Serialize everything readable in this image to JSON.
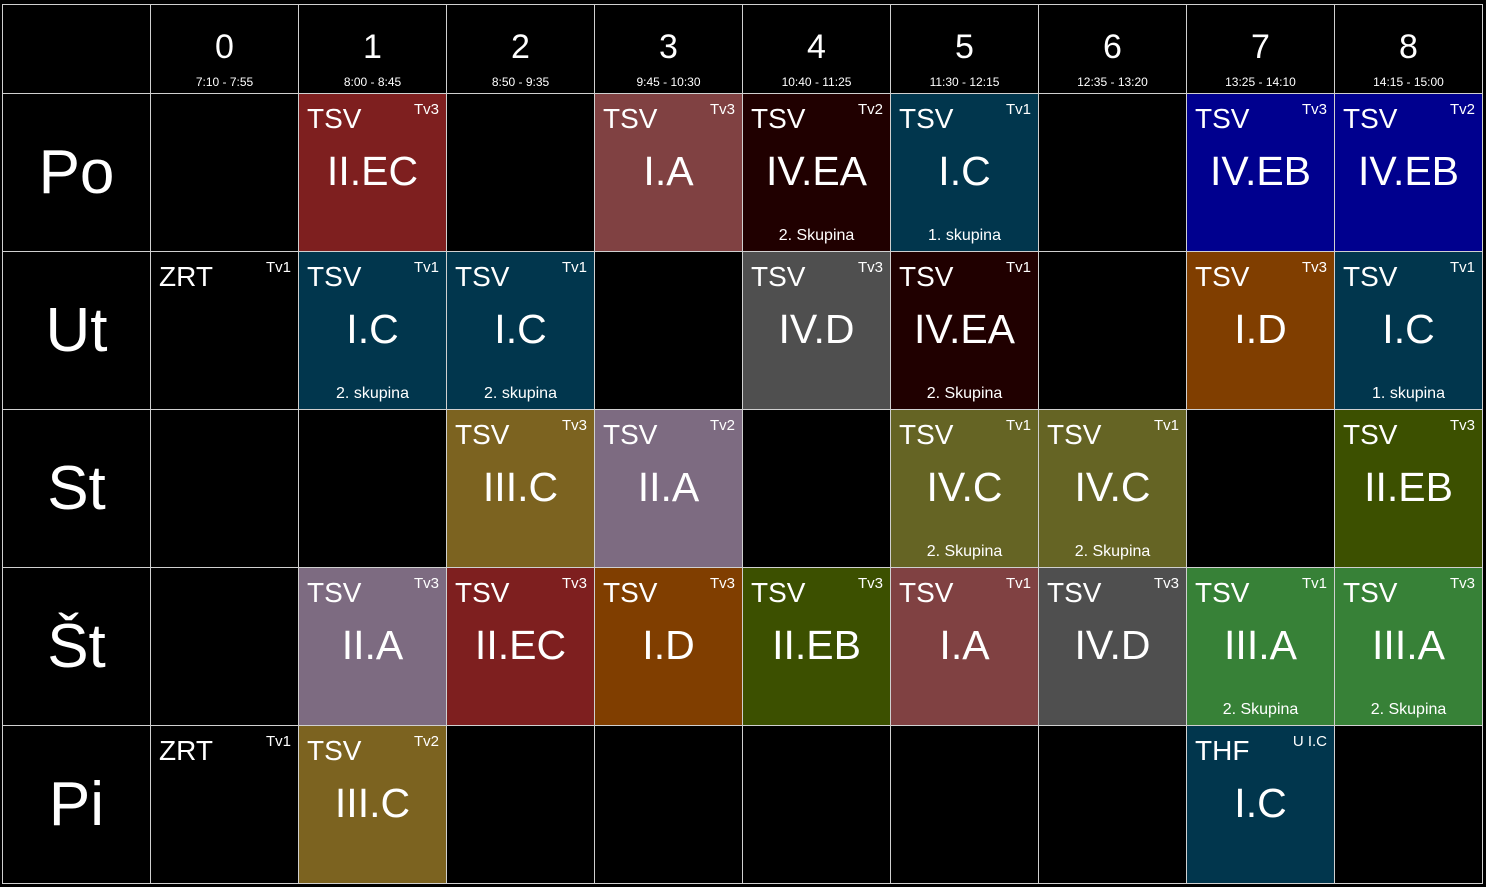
{
  "periods": [
    {
      "num": "0",
      "time": "7:10 - 7:55"
    },
    {
      "num": "1",
      "time": "8:00 - 8:45"
    },
    {
      "num": "2",
      "time": "8:50 - 9:35"
    },
    {
      "num": "3",
      "time": "9:45 - 10:30"
    },
    {
      "num": "4",
      "time": "10:40 - 11:25"
    },
    {
      "num": "5",
      "time": "11:30 - 12:15"
    },
    {
      "num": "6",
      "time": "12:35 - 13:20"
    },
    {
      "num": "7",
      "time": "13:25 - 14:10"
    },
    {
      "num": "8",
      "time": "14:15 - 15:00"
    }
  ],
  "days": [
    {
      "label": "Po",
      "lessons": [
        null,
        {
          "subject": "TSV",
          "room": "Tv3",
          "class": "II.EC",
          "group": "",
          "color": "#7e1f1f"
        },
        null,
        {
          "subject": "TSV",
          "room": "Tv3",
          "class": "I.A",
          "group": "",
          "color": "#804142"
        },
        {
          "subject": "TSV",
          "room": "Tv2",
          "class": "IV.EA",
          "group": "2. Skupina",
          "color": "#200000"
        },
        {
          "subject": "TSV",
          "room": "Tv1",
          "class": "I.C",
          "group": "1. skupina",
          "color": "#01364d"
        },
        null,
        {
          "subject": "TSV",
          "room": "Tv3",
          "class": "IV.EB",
          "group": "",
          "color": "#00008e"
        },
        {
          "subject": "TSV",
          "room": "Tv2",
          "class": "IV.EB",
          "group": "",
          "color": "#00008e"
        }
      ]
    },
    {
      "label": "Ut",
      "lessons": [
        {
          "subject": "ZRT",
          "room": "Tv1",
          "class": "",
          "group": "",
          "color": "#000000"
        },
        {
          "subject": "TSV",
          "room": "Tv1",
          "class": "I.C",
          "group": "2. skupina",
          "color": "#01364d"
        },
        {
          "subject": "TSV",
          "room": "Tv1",
          "class": "I.C",
          "group": "2. skupina",
          "color": "#01364d"
        },
        null,
        {
          "subject": "TSV",
          "room": "Tv3",
          "class": "IV.D",
          "group": "",
          "color": "#4f4f4f"
        },
        {
          "subject": "TSV",
          "room": "Tv1",
          "class": "IV.EA",
          "group": "2. Skupina",
          "color": "#200000"
        },
        null,
        {
          "subject": "TSV",
          "room": "Tv3",
          "class": "I.D",
          "group": "",
          "color": "#803e00"
        },
        {
          "subject": "TSV",
          "room": "Tv1",
          "class": "I.C",
          "group": "1. skupina",
          "color": "#01364d"
        }
      ]
    },
    {
      "label": "St",
      "lessons": [
        null,
        null,
        {
          "subject": "TSV",
          "room": "Tv3",
          "class": "III.C",
          "group": "",
          "color": "#7c6320"
        },
        {
          "subject": "TSV",
          "room": "Tv2",
          "class": "II.A",
          "group": "",
          "color": "#7d6b81"
        },
        null,
        {
          "subject": "TSV",
          "room": "Tv1",
          "class": "IV.C",
          "group": "2. Skupina",
          "color": "#656424"
        },
        {
          "subject": "TSV",
          "room": "Tv1",
          "class": "IV.C",
          "group": "2. Skupina",
          "color": "#656424"
        },
        null,
        {
          "subject": "TSV",
          "room": "Tv3",
          "class": "II.EB",
          "group": "",
          "color": "#3c5000"
        }
      ]
    },
    {
      "label": "Št",
      "lessons": [
        null,
        {
          "subject": "TSV",
          "room": "Tv3",
          "class": "II.A",
          "group": "",
          "color": "#7d6b81"
        },
        {
          "subject": "TSV",
          "room": "Tv3",
          "class": "II.EC",
          "group": "",
          "color": "#7e1f1f"
        },
        {
          "subject": "TSV",
          "room": "Tv3",
          "class": "I.D",
          "group": "",
          "color": "#803e00"
        },
        {
          "subject": "TSV",
          "room": "Tv3",
          "class": "II.EB",
          "group": "",
          "color": "#3c5000"
        },
        {
          "subject": "TSV",
          "room": "Tv1",
          "class": "I.A",
          "group": "",
          "color": "#804142"
        },
        {
          "subject": "TSV",
          "room": "Tv3",
          "class": "IV.D",
          "group": "",
          "color": "#4f4f4f"
        },
        {
          "subject": "TSV",
          "room": "Tv1",
          "class": "III.A",
          "group": "2. Skupina",
          "color": "#378137"
        },
        {
          "subject": "TSV",
          "room": "Tv3",
          "class": "III.A",
          "group": "2. Skupina",
          "color": "#378137"
        }
      ]
    },
    {
      "label": "Pi",
      "lessons": [
        {
          "subject": "ZRT",
          "room": "Tv1",
          "class": "",
          "group": "",
          "color": "#000000"
        },
        {
          "subject": "TSV",
          "room": "Tv2",
          "class": "III.C",
          "group": "",
          "color": "#7c6320"
        },
        null,
        null,
        null,
        null,
        null,
        {
          "subject": "THF",
          "room": "U I.C",
          "class": "I.C",
          "group": "",
          "color": "#01364d"
        },
        null
      ]
    }
  ]
}
